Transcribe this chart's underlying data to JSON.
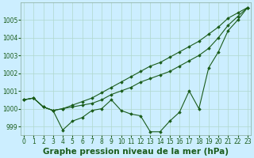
{
  "xlabel": "Graphe pression niveau de la mer (hPa)",
  "bg_color": "#cceeff",
  "plot_bg_color": "#cceeff",
  "grid_color": "#b0d8cc",
  "line_color": "#1a5c1a",
  "xlim": [
    -0.3,
    23.3
  ],
  "ylim": [
    998.5,
    1006.0
  ],
  "yticks": [
    999,
    1000,
    1001,
    1002,
    1003,
    1004,
    1005
  ],
  "xticks": [
    0,
    1,
    2,
    3,
    4,
    5,
    6,
    7,
    8,
    9,
    10,
    11,
    12,
    13,
    14,
    15,
    16,
    17,
    18,
    19,
    20,
    21,
    22,
    23
  ],
  "series": [
    [
      1000.5,
      1000.6,
      1000.1,
      999.9,
      998.8,
      999.3,
      999.5,
      999.9,
      1000.0,
      1000.5,
      999.9,
      999.7,
      999.6,
      998.7,
      998.7,
      999.3,
      999.8,
      1001.0,
      1000.0,
      1002.3,
      1003.2,
      1004.4,
      1005.0,
      1005.7
    ],
    [
      1000.5,
      1000.6,
      1000.1,
      999.9,
      1000.0,
      1000.1,
      1000.2,
      1000.3,
      1000.5,
      1000.8,
      1001.0,
      1001.2,
      1001.5,
      1001.7,
      1001.9,
      1002.1,
      1002.4,
      1002.7,
      1003.0,
      1003.4,
      1004.0,
      1004.7,
      1005.2,
      1005.7
    ],
    [
      1000.5,
      1000.6,
      1000.1,
      999.9,
      1000.0,
      1000.2,
      1000.4,
      1000.6,
      1000.9,
      1001.2,
      1001.5,
      1001.8,
      1002.1,
      1002.4,
      1002.6,
      1002.9,
      1003.2,
      1003.5,
      1003.8,
      1004.2,
      1004.6,
      1005.1,
      1005.4,
      1005.7
    ]
  ],
  "marker": "D",
  "markersize": 1.8,
  "linewidth": 0.8,
  "xlabel_fontsize": 7.5,
  "tick_fontsize": 5.5
}
